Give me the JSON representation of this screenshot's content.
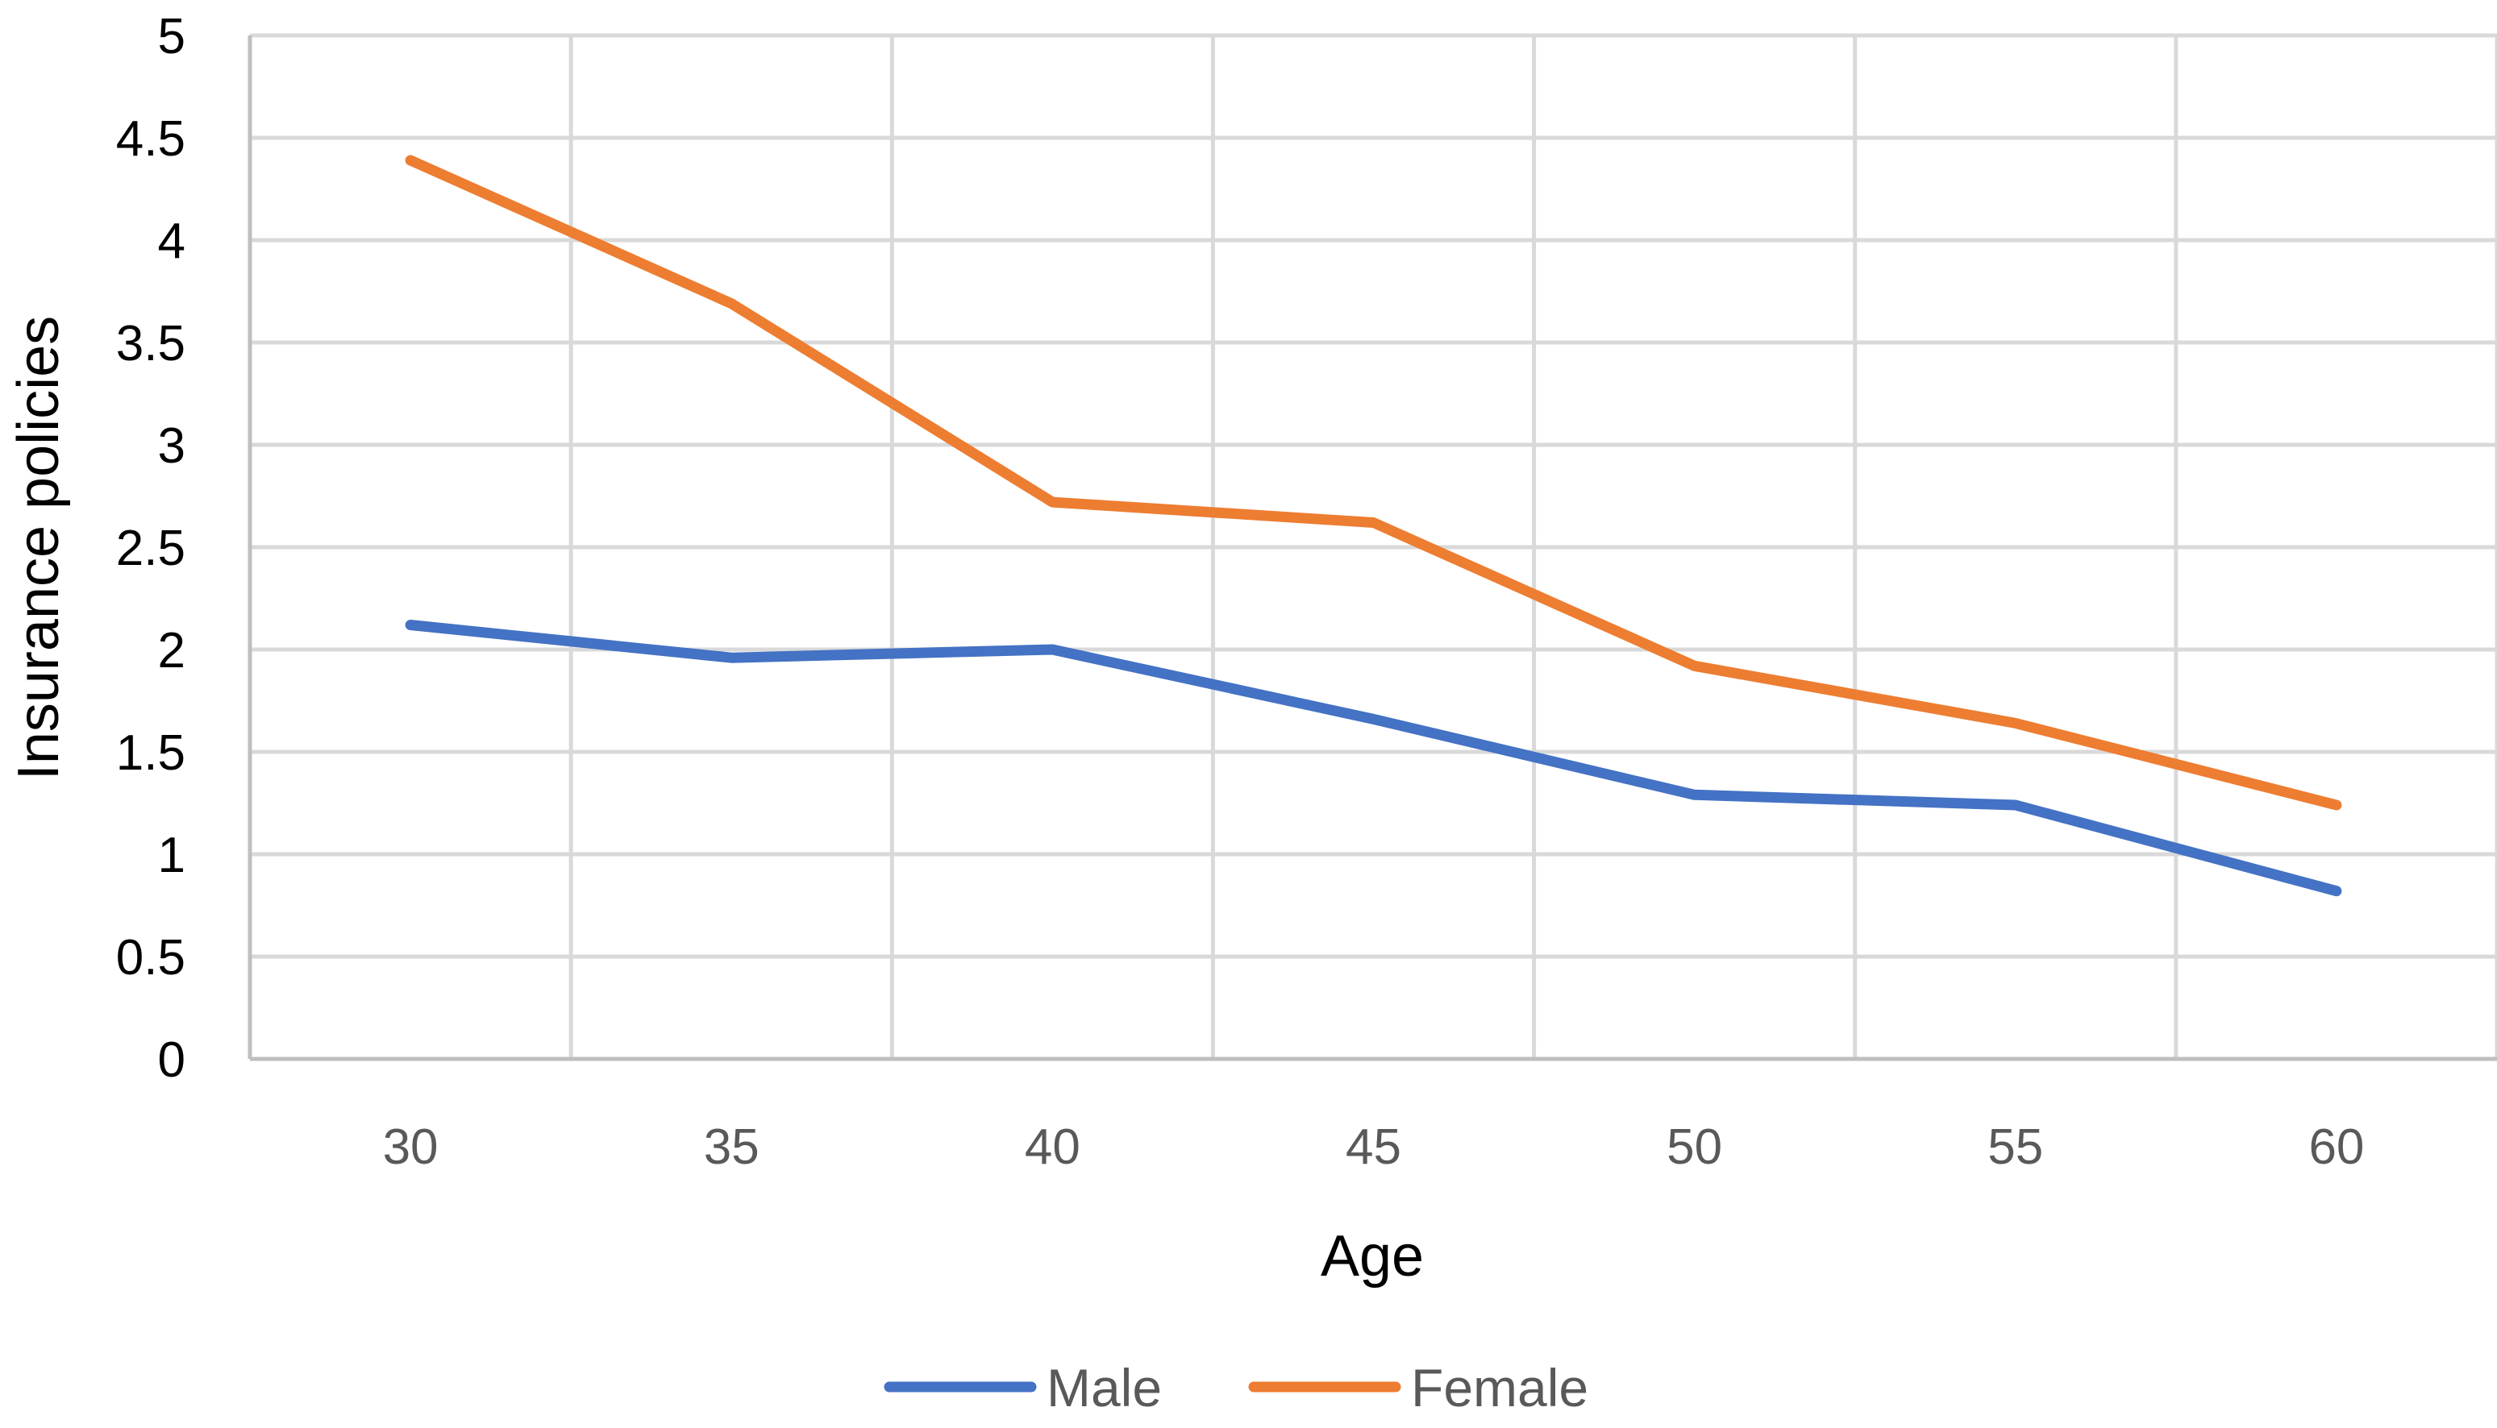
{
  "chart_data": {
    "type": "line",
    "title": "",
    "xlabel": "Age",
    "ylabel": "Insurance policies",
    "categories": [
      "30",
      "35",
      "40",
      "45",
      "50",
      "55",
      "60"
    ],
    "ylim": [
      0,
      5
    ],
    "yticks": [
      "0",
      "0.5",
      "1",
      "1.5",
      "2",
      "2.5",
      "3",
      "3.5",
      "4",
      "4.5",
      "5"
    ],
    "grid": true,
    "legend_position": "bottom",
    "series": [
      {
        "name": "Male",
        "color": "#4472c4",
        "values": [
          2.12,
          1.96,
          2.0,
          1.66,
          1.29,
          1.24,
          0.82
        ]
      },
      {
        "name": "Female",
        "color": "#ed7d31",
        "values": [
          4.39,
          3.69,
          2.72,
          2.62,
          1.92,
          1.64,
          1.24
        ]
      }
    ]
  }
}
